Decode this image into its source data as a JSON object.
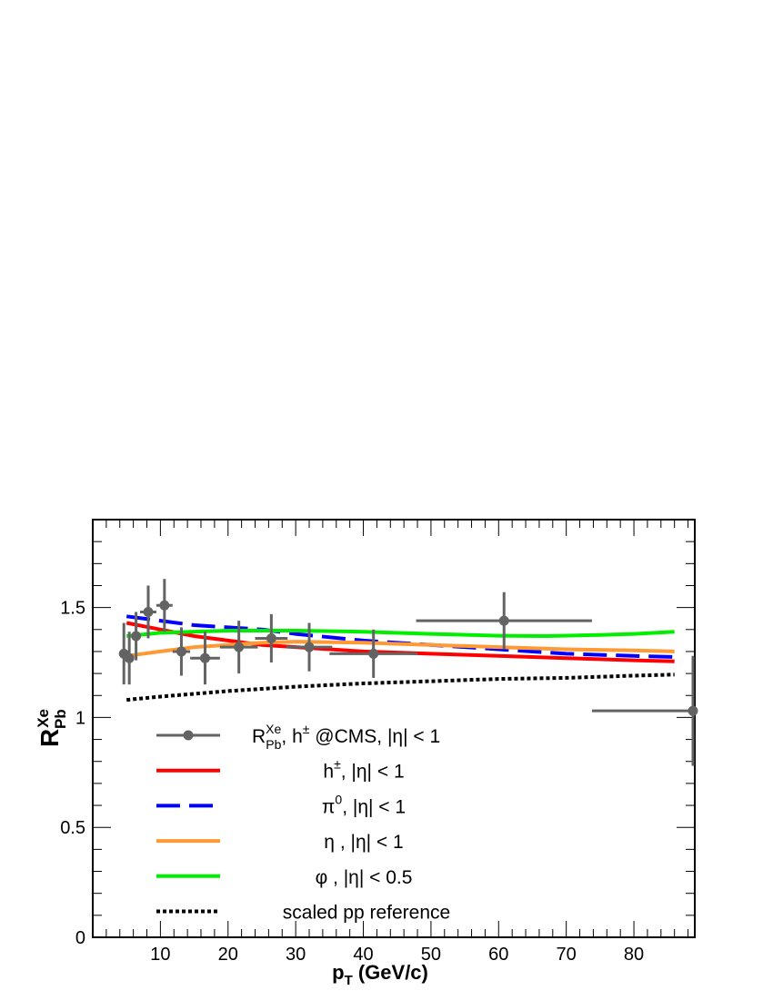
{
  "chart_data": {
    "type": "line",
    "xlabel": "p",
    "xlabel_sub": "T",
    "xlabel_unit": " (GeV/c)",
    "ylabel": "R",
    "ylabel_sup": "Xe",
    "ylabel_sub": "Pb",
    "xlim": [
      0,
      89
    ],
    "ylim": [
      0,
      1.9
    ],
    "x_ticks": [
      10,
      20,
      30,
      40,
      50,
      60,
      70,
      80
    ],
    "y_ticks": [
      0,
      0.5,
      1,
      1.5
    ],
    "y_tick_labels": [
      "0",
      "0.5",
      "1",
      "1.5"
    ],
    "grid": false,
    "legend_position": "lower-left (inside)",
    "data_series": {
      "name": "R_Pb^Xe, h± @CMS, |η| < 1",
      "color": "#636363",
      "points": [
        {
          "x": 4.6,
          "y": 1.29,
          "xerr": 0.4,
          "yerr": 0.14
        },
        {
          "x": 5.4,
          "y": 1.27,
          "xerr": 0.4,
          "yerr": 0.12
        },
        {
          "x": 6.4,
          "y": 1.37,
          "xerr": 0.6,
          "yerr": 0.11
        },
        {
          "x": 8.2,
          "y": 1.48,
          "xerr": 1.2,
          "yerr": 0.12
        },
        {
          "x": 10.6,
          "y": 1.51,
          "xerr": 1.2,
          "yerr": 0.12
        },
        {
          "x": 13.1,
          "y": 1.3,
          "xerr": 1.3,
          "yerr": 0.11
        },
        {
          "x": 16.6,
          "y": 1.27,
          "xerr": 2.2,
          "yerr": 0.12
        },
        {
          "x": 21.6,
          "y": 1.32,
          "xerr": 2.8,
          "yerr": 0.12
        },
        {
          "x": 26.4,
          "y": 1.36,
          "xerr": 2.4,
          "yerr": 0.11
        },
        {
          "x": 32.0,
          "y": 1.32,
          "xerr": 3.4,
          "yerr": 0.11
        },
        {
          "x": 41.5,
          "y": 1.29,
          "xerr": 6.5,
          "yerr": 0.11
        },
        {
          "x": 60.8,
          "y": 1.44,
          "xerr": 13.0,
          "yerr": 0.13
        },
        {
          "x": 88.8,
          "y": 1.03,
          "xerr": 15.0,
          "yerr": 0.25
        }
      ]
    },
    "series": [
      {
        "name": "h±, |η| < 1",
        "color": "#ff0000",
        "dash": "solid",
        "x": [
          5,
          10,
          15,
          20,
          25,
          30,
          40,
          50,
          60,
          70,
          80,
          86
        ],
        "y": [
          1.43,
          1.4,
          1.37,
          1.35,
          1.33,
          1.32,
          1.3,
          1.29,
          1.28,
          1.27,
          1.26,
          1.255
        ]
      },
      {
        "name": "π0, |η| < 1",
        "color": "#0000ff",
        "dash": "dashed",
        "x": [
          5,
          10,
          15,
          20,
          25,
          30,
          40,
          50,
          60,
          70,
          80,
          86
        ],
        "y": [
          1.46,
          1.44,
          1.42,
          1.41,
          1.4,
          1.38,
          1.35,
          1.33,
          1.31,
          1.29,
          1.28,
          1.275
        ]
      },
      {
        "name": "η, |η| < 1",
        "color": "#ff9933",
        "dash": "solid",
        "x": [
          5,
          10,
          15,
          20,
          25,
          30,
          40,
          50,
          60,
          70,
          80,
          86
        ],
        "y": [
          1.28,
          1.3,
          1.32,
          1.33,
          1.34,
          1.345,
          1.34,
          1.33,
          1.32,
          1.31,
          1.305,
          1.3
        ]
      },
      {
        "name": "φ, |η| < 0.5",
        "color": "#00ee00",
        "dash": "solid",
        "x": [
          5,
          10,
          20,
          30,
          40,
          50,
          60,
          67,
          75,
          80,
          86
        ],
        "y": [
          1.37,
          1.385,
          1.395,
          1.395,
          1.39,
          1.38,
          1.372,
          1.37,
          1.375,
          1.38,
          1.39
        ]
      },
      {
        "name": "scaled pp reference",
        "color": "#000000",
        "dash": "dotted",
        "x": [
          5,
          10,
          20,
          30,
          40,
          50,
          60,
          70,
          80,
          86
        ],
        "y": [
          1.08,
          1.095,
          1.12,
          1.14,
          1.155,
          1.165,
          1.175,
          1.18,
          1.19,
          1.195
        ]
      }
    ],
    "legend": [
      {
        "kind": "data",
        "main": "R",
        "sup": "Xe",
        "sub": "Pb",
        "rest_a": ",  h",
        "rest_sup": "±",
        "rest_b": "  @CMS, |η| < 1"
      },
      {
        "kind": "line",
        "series_index": 0,
        "main": "h",
        "sup": "±",
        "rest": ",  |η|  <  1"
      },
      {
        "kind": "line",
        "series_index": 1,
        "main": "π",
        "sup": "0",
        "rest": ",  |η|  <  1"
      },
      {
        "kind": "line",
        "series_index": 2,
        "main": "η",
        "sup": "",
        "rest": " ,  |η|  <  1"
      },
      {
        "kind": "line",
        "series_index": 3,
        "main": "φ",
        "sup": "",
        "rest": " ,  |η|  <  0.5"
      },
      {
        "kind": "line",
        "series_index": 4,
        "main": "scaled pp reference",
        "sup": "",
        "rest": ""
      }
    ]
  }
}
